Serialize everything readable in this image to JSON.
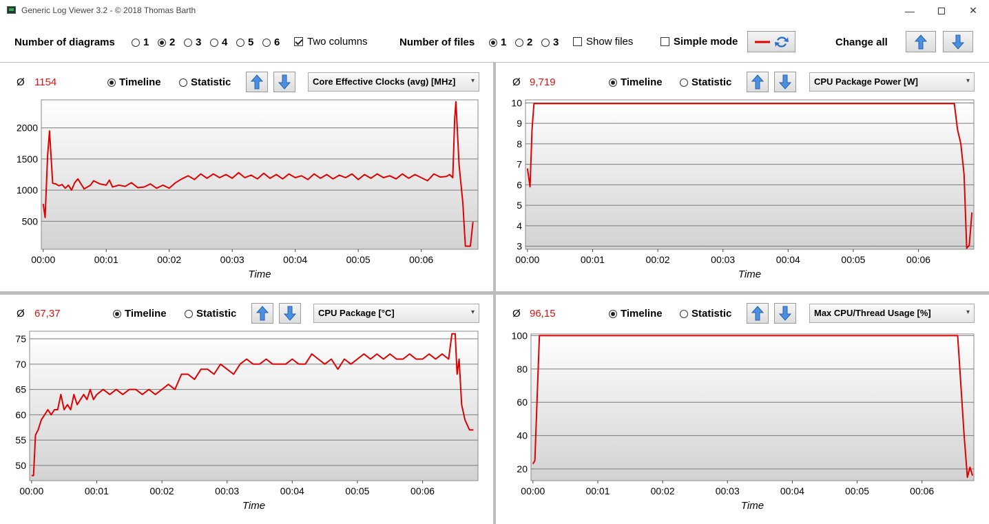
{
  "window": {
    "title": "Generic Log Viewer 3.2 - © 2018 Thomas Barth",
    "min_glyph": "—",
    "close_glyph": "✕"
  },
  "toolbar": {
    "num_diagrams_label": "Number of diagrams",
    "diagram_options": [
      "1",
      "2",
      "3",
      "4",
      "5",
      "6"
    ],
    "diagram_selected": "2",
    "two_columns_label": "Two columns",
    "two_columns_checked": true,
    "num_files_label": "Number of files",
    "file_options": [
      "1",
      "2",
      "3"
    ],
    "file_selected": "1",
    "show_files_label": "Show files",
    "show_files_checked": false,
    "simple_mode_label": "Simple mode",
    "simple_mode_checked": false,
    "change_all_label": "Change all",
    "line_color": "#e00000"
  },
  "controls": {
    "timeline_label": "Timeline",
    "statistic_label": "Statistic",
    "avg_symbol": "Ø"
  },
  "panels": [
    {
      "avg": "1154",
      "sensor": "Core Effective Clocks (avg) [MHz]",
      "chart_data": {
        "type": "line",
        "xlabel": "Time",
        "x_ticks": [
          "00:00",
          "00:01",
          "00:02",
          "00:03",
          "00:04",
          "00:05",
          "00:06"
        ],
        "xlim": [
          -0.03,
          6.9
        ],
        "y_ticks": [
          500,
          1000,
          1500,
          2000
        ],
        "ylim": [
          50,
          2450
        ],
        "grid": true,
        "x": [
          0,
          0.03,
          0.07,
          0.1,
          0.15,
          0.2,
          0.25,
          0.3,
          0.35,
          0.4,
          0.45,
          0.5,
          0.55,
          0.6,
          0.65,
          0.7,
          0.75,
          0.8,
          0.9,
          1.0,
          1.05,
          1.1,
          1.2,
          1.3,
          1.4,
          1.5,
          1.6,
          1.7,
          1.8,
          1.9,
          2.0,
          2.1,
          2.2,
          2.3,
          2.4,
          2.5,
          2.6,
          2.7,
          2.8,
          2.9,
          3.0,
          3.1,
          3.2,
          3.3,
          3.4,
          3.5,
          3.6,
          3.7,
          3.8,
          3.9,
          4.0,
          4.1,
          4.2,
          4.3,
          4.4,
          4.5,
          4.6,
          4.7,
          4.8,
          4.9,
          5.0,
          5.1,
          5.2,
          5.3,
          5.4,
          5.5,
          5.6,
          5.7,
          5.8,
          5.9,
          6.0,
          6.1,
          6.2,
          6.3,
          6.4,
          6.45,
          6.5,
          6.53,
          6.55,
          6.6,
          6.66,
          6.7,
          6.78,
          6.82
        ],
        "values": [
          780,
          560,
          1550,
          1950,
          1110,
          1100,
          1070,
          1090,
          1030,
          1080,
          1000,
          1120,
          1180,
          1100,
          1020,
          1050,
          1080,
          1150,
          1100,
          1080,
          1160,
          1050,
          1080,
          1060,
          1120,
          1040,
          1050,
          1100,
          1030,
          1080,
          1030,
          1120,
          1180,
          1230,
          1170,
          1260,
          1190,
          1260,
          1200,
          1250,
          1190,
          1280,
          1200,
          1240,
          1180,
          1270,
          1190,
          1250,
          1180,
          1260,
          1200,
          1230,
          1170,
          1260,
          1190,
          1250,
          1180,
          1240,
          1200,
          1260,
          1170,
          1250,
          1190,
          1260,
          1200,
          1230,
          1180,
          1260,
          1190,
          1250,
          1200,
          1150,
          1260,
          1210,
          1220,
          1250,
          1200,
          2150,
          2420,
          1400,
          800,
          100,
          100,
          490
        ]
      }
    },
    {
      "avg": "9,719",
      "sensor": "CPU Package Power [W]",
      "chart_data": {
        "type": "line",
        "xlabel": "Time",
        "x_ticks": [
          "00:00",
          "00:01",
          "00:02",
          "00:03",
          "00:04",
          "00:05",
          "00:06"
        ],
        "xlim": [
          -0.03,
          6.85
        ],
        "y_ticks": [
          3,
          4,
          5,
          6,
          7,
          8,
          9,
          10
        ],
        "ylim": [
          2.85,
          10.15
        ],
        "grid": true,
        "x": [
          0,
          0.04,
          0.07,
          0.1,
          6.55,
          6.6,
          6.65,
          6.7,
          6.74,
          6.78,
          6.82
        ],
        "values": [
          6.8,
          5.9,
          8.7,
          9.97,
          9.97,
          8.7,
          8.0,
          6.5,
          2.9,
          3.05,
          4.65
        ]
      }
    },
    {
      "avg": "67,37",
      "sensor": "CPU Package [°C]",
      "chart_data": {
        "type": "line",
        "xlabel": "Time",
        "x_ticks": [
          "00:00",
          "00:01",
          "00:02",
          "00:03",
          "00:04",
          "00:05",
          "00:06"
        ],
        "xlim": [
          -0.03,
          6.85
        ],
        "y_ticks": [
          50,
          55,
          60,
          65,
          70,
          75
        ],
        "ylim": [
          47,
          76.5
        ],
        "grid": true,
        "x": [
          0,
          0.03,
          0.06,
          0.1,
          0.15,
          0.2,
          0.25,
          0.3,
          0.35,
          0.4,
          0.45,
          0.5,
          0.55,
          0.6,
          0.65,
          0.7,
          0.75,
          0.8,
          0.85,
          0.9,
          0.95,
          1.0,
          1.1,
          1.2,
          1.3,
          1.4,
          1.5,
          1.6,
          1.7,
          1.8,
          1.9,
          2.0,
          2.1,
          2.2,
          2.3,
          2.4,
          2.5,
          2.6,
          2.7,
          2.8,
          2.9,
          3.0,
          3.1,
          3.2,
          3.3,
          3.4,
          3.5,
          3.6,
          3.7,
          3.8,
          3.9,
          4.0,
          4.1,
          4.2,
          4.3,
          4.4,
          4.5,
          4.6,
          4.7,
          4.8,
          4.9,
          5.0,
          5.1,
          5.2,
          5.3,
          5.4,
          5.5,
          5.6,
          5.7,
          5.8,
          5.9,
          6.0,
          6.1,
          6.2,
          6.3,
          6.4,
          6.45,
          6.5,
          6.53,
          6.56,
          6.6,
          6.65,
          6.72,
          6.78
        ],
        "values": [
          48,
          48,
          56,
          57,
          59,
          60,
          61,
          60,
          61,
          61,
          64,
          61,
          62,
          61,
          64,
          62,
          63,
          64,
          63,
          65,
          63,
          64,
          65,
          64,
          65,
          64,
          65,
          65,
          64,
          65,
          64,
          65,
          66,
          65,
          68,
          68,
          67,
          69,
          69,
          68,
          70,
          69,
          68,
          70,
          71,
          70,
          70,
          71,
          70,
          70,
          70,
          71,
          70,
          70,
          72,
          71,
          70,
          71,
          69,
          71,
          70,
          71,
          72,
          71,
          72,
          71,
          72,
          71,
          71,
          72,
          71,
          71,
          72,
          71,
          72,
          71,
          76,
          76,
          68,
          71,
          62,
          59,
          57,
          57
        ]
      }
    },
    {
      "avg": "96,15",
      "sensor": "Max CPU/Thread Usage [%]",
      "chart_data": {
        "type": "line",
        "xlabel": "Time",
        "x_ticks": [
          "00:00",
          "00:01",
          "00:02",
          "00:03",
          "00:04",
          "00:05",
          "00:06"
        ],
        "xlim": [
          -0.03,
          6.8
        ],
        "y_ticks": [
          20,
          40,
          60,
          80,
          100
        ],
        "ylim": [
          13,
          101
        ],
        "grid": true,
        "x": [
          0,
          0.03,
          0.1,
          6.55,
          6.6,
          6.65,
          6.7,
          6.74,
          6.78
        ],
        "values": [
          23,
          25,
          100,
          100,
          70,
          40,
          15,
          21,
          16
        ]
      }
    }
  ]
}
